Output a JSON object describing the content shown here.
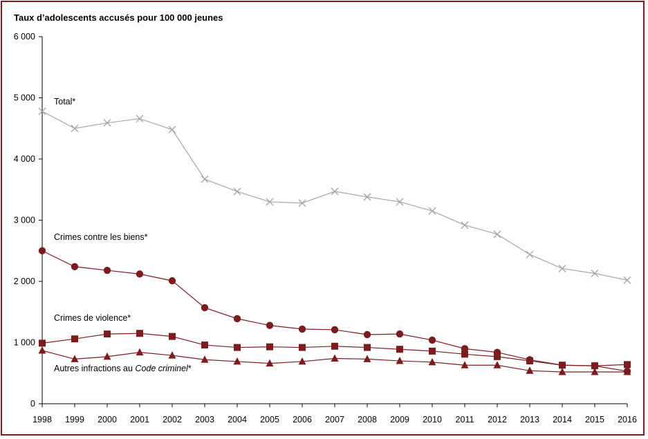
{
  "chart_data": {
    "type": "line",
    "title": "",
    "ylabel": "Taux d’adolescents accusés pour 100 000 jeunes",
    "xlabel": "",
    "ylim": [
      0,
      6000
    ],
    "y_ticks": [
      "0",
      "1 000",
      "2 000",
      "3 000",
      "4 000",
      "5 000",
      "6 000"
    ],
    "y_tick_values": [
      0,
      1000,
      2000,
      3000,
      4000,
      5000,
      6000
    ],
    "x": [
      "1998",
      "1999",
      "2000",
      "2001",
      "2002",
      "2003",
      "2004",
      "2005",
      "2006",
      "2007",
      "2008",
      "2009",
      "2010",
      "2011",
      "2012",
      "2013",
      "2014",
      "2015",
      "2016"
    ],
    "grid": false,
    "legend": "inline labels",
    "series": [
      {
        "name": "Total*",
        "label_parts": [
          "Total*"
        ],
        "marker": "x",
        "color": "#a6a6a6",
        "values": [
          4780,
          4500,
          4590,
          4660,
          4480,
          3670,
          3470,
          3300,
          3280,
          3470,
          3380,
          3300,
          3150,
          2920,
          2770,
          2440,
          2210,
          2130,
          2020
        ]
      },
      {
        "name": "Crimes contre les biens*",
        "label_parts": [
          "Crimes contre les biens*"
        ],
        "marker": "circle",
        "color": "#7b1c1f",
        "values": [
          2500,
          2240,
          2180,
          2120,
          2010,
          1570,
          1390,
          1280,
          1220,
          1210,
          1130,
          1140,
          1040,
          900,
          840,
          720,
          630,
          620,
          530
        ]
      },
      {
        "name": "Crimes de violence*",
        "label_parts": [
          "Crimes de violence*"
        ],
        "marker": "square",
        "color": "#7b1c1f",
        "values": [
          990,
          1060,
          1140,
          1150,
          1100,
          960,
          920,
          930,
          920,
          940,
          920,
          890,
          860,
          810,
          770,
          700,
          630,
          620,
          640
        ]
      },
      {
        "name": "Autres infractions au Code criminel*",
        "label_parts": [
          "Autres infractions au ",
          "Code criminel",
          "*"
        ],
        "marker": "triangle",
        "color": "#7b1c1f",
        "values": [
          870,
          730,
          770,
          840,
          790,
          720,
          690,
          660,
          690,
          740,
          730,
          700,
          680,
          630,
          630,
          540,
          520,
          520,
          520
        ]
      }
    ]
  }
}
